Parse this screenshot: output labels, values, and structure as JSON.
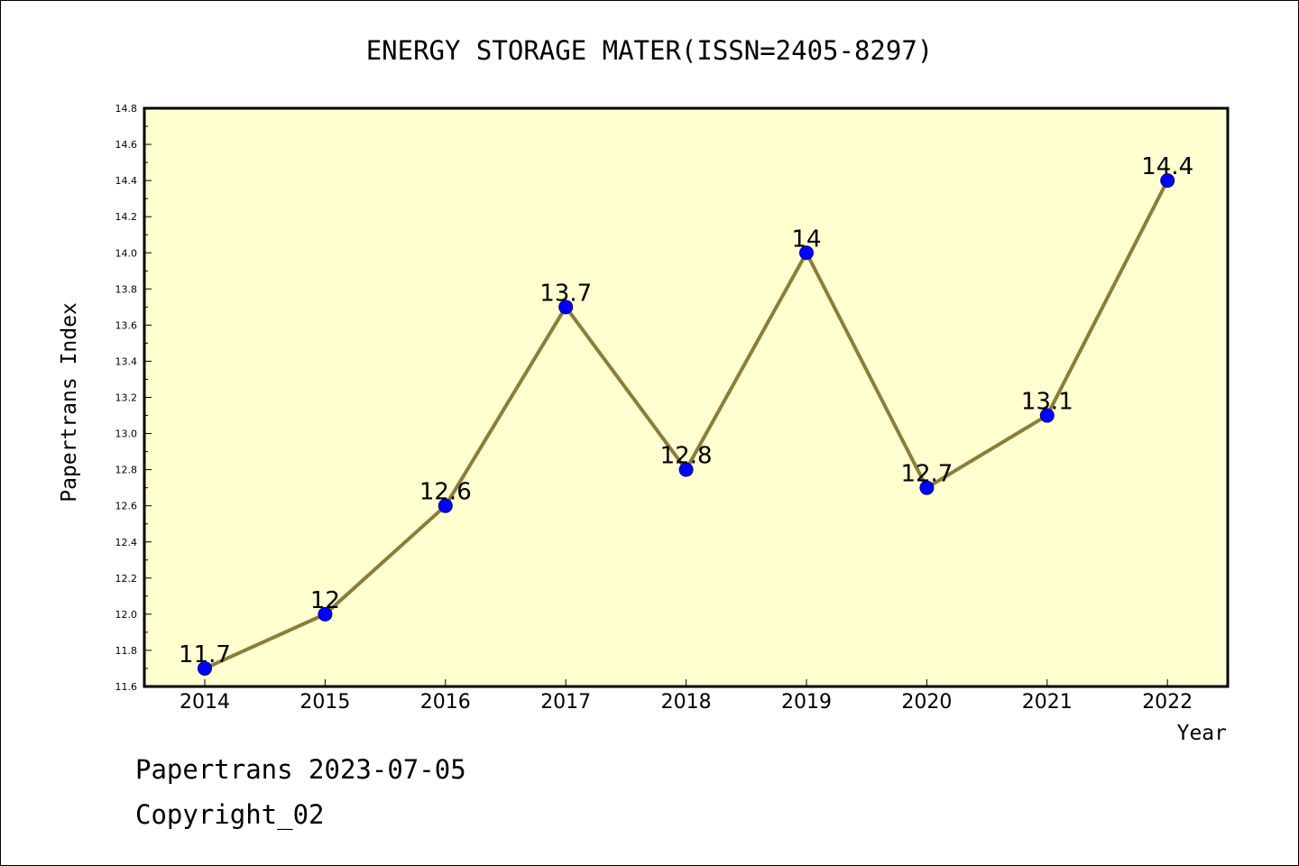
{
  "chart_data": {
    "type": "line",
    "title": "ENERGY STORAGE MATER(ISSN=2405-8297)",
    "xlabel": "Year",
    "ylabel": "Papertrans Index",
    "categories": [
      "2014",
      "2015",
      "2016",
      "2017",
      "2018",
      "2019",
      "2020",
      "2021",
      "2022"
    ],
    "series": [
      {
        "values": [
          11.7,
          12.0,
          12.6,
          13.7,
          12.8,
          14.0,
          12.7,
          13.1,
          14.4
        ]
      }
    ],
    "data_labels": [
      "11.7",
      "12",
      "12.6",
      "13.7",
      "12.8",
      "14",
      "12.7",
      "13.1",
      "14.4"
    ],
    "ylim": [
      11.6,
      14.8
    ],
    "yticks": [
      "11.6",
      "11.8",
      "12.0",
      "12.2",
      "12.4",
      "12.6",
      "12.8",
      "13.0",
      "13.2",
      "13.4",
      "13.6",
      "13.8",
      "14.0",
      "14.2",
      "14.4",
      "14.6",
      "14.8"
    ],
    "grid": false,
    "legend": "none",
    "colors": {
      "plot_background": "#ffffd0",
      "line": "#8b7d3a",
      "marker": "#0000ff",
      "marker_edge": "#00008b"
    }
  },
  "footer": {
    "line1": "Papertrans 2023-07-05",
    "line2": "Copyright_02"
  }
}
